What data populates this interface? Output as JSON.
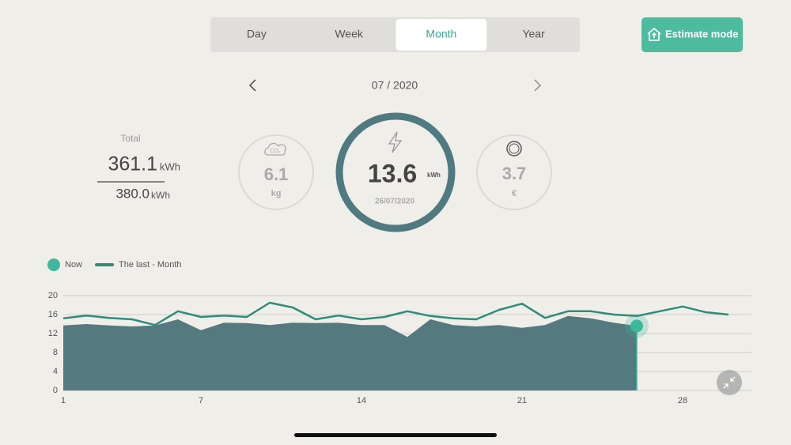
{
  "tabs": [
    "Day",
    "Week",
    "Month",
    "Year"
  ],
  "selected_tab": "Month",
  "button": "Estimate mode",
  "period": "07 / 2020",
  "total": {
    "label": "Total",
    "value": "361.1",
    "unit": "kWh",
    "target": "380.0",
    "target_unit": "kWh"
  },
  "co2": {
    "icon": "CO₂",
    "value": "6.1",
    "unit": "kg"
  },
  "energy": {
    "value": "13.6",
    "unit": "kWh",
    "date": "26/07/2020"
  },
  "cost": {
    "value": "3.7",
    "unit": "€"
  },
  "chart_data": {
    "type": "area",
    "x": [
      1,
      2,
      3,
      4,
      5,
      6,
      7,
      8,
      9,
      10,
      11,
      12,
      13,
      14,
      15,
      16,
      17,
      18,
      19,
      20,
      21,
      22,
      23,
      24,
      25,
      26,
      27,
      28,
      29,
      30
    ],
    "series": [
      {
        "name": "Now",
        "type": "area",
        "color": "#547a80",
        "marker_color": "#3db89c",
        "values": [
          13.7,
          14,
          13.7,
          13.5,
          13.7,
          15,
          12.7,
          14.3,
          14.2,
          13.8,
          14.3,
          14.2,
          14.3,
          13.8,
          13.8,
          11.3,
          15,
          13.8,
          13.5,
          13.8,
          13.2,
          13.8,
          15.7,
          15.2,
          14.3,
          13.6,
          null,
          null,
          null,
          null
        ]
      },
      {
        "name": "The last - Month",
        "type": "line",
        "color": "#2e8c7a",
        "values": [
          15.2,
          15.8,
          15.3,
          15,
          13.8,
          16.7,
          15.5,
          15.8,
          15.5,
          18.5,
          17.5,
          15,
          15.8,
          15,
          15.5,
          16.7,
          15.7,
          15.2,
          15,
          17,
          18.3,
          15.3,
          16.7,
          16.7,
          16,
          15.7,
          16.7,
          17.7,
          16.5,
          16
        ]
      }
    ],
    "xlim": [
      1,
      31
    ],
    "xticks": [
      1,
      7,
      14,
      21,
      28
    ],
    "ylim": [
      0,
      20
    ],
    "yticks": [
      0,
      4,
      8,
      12,
      16,
      20
    ],
    "grid": true
  }
}
